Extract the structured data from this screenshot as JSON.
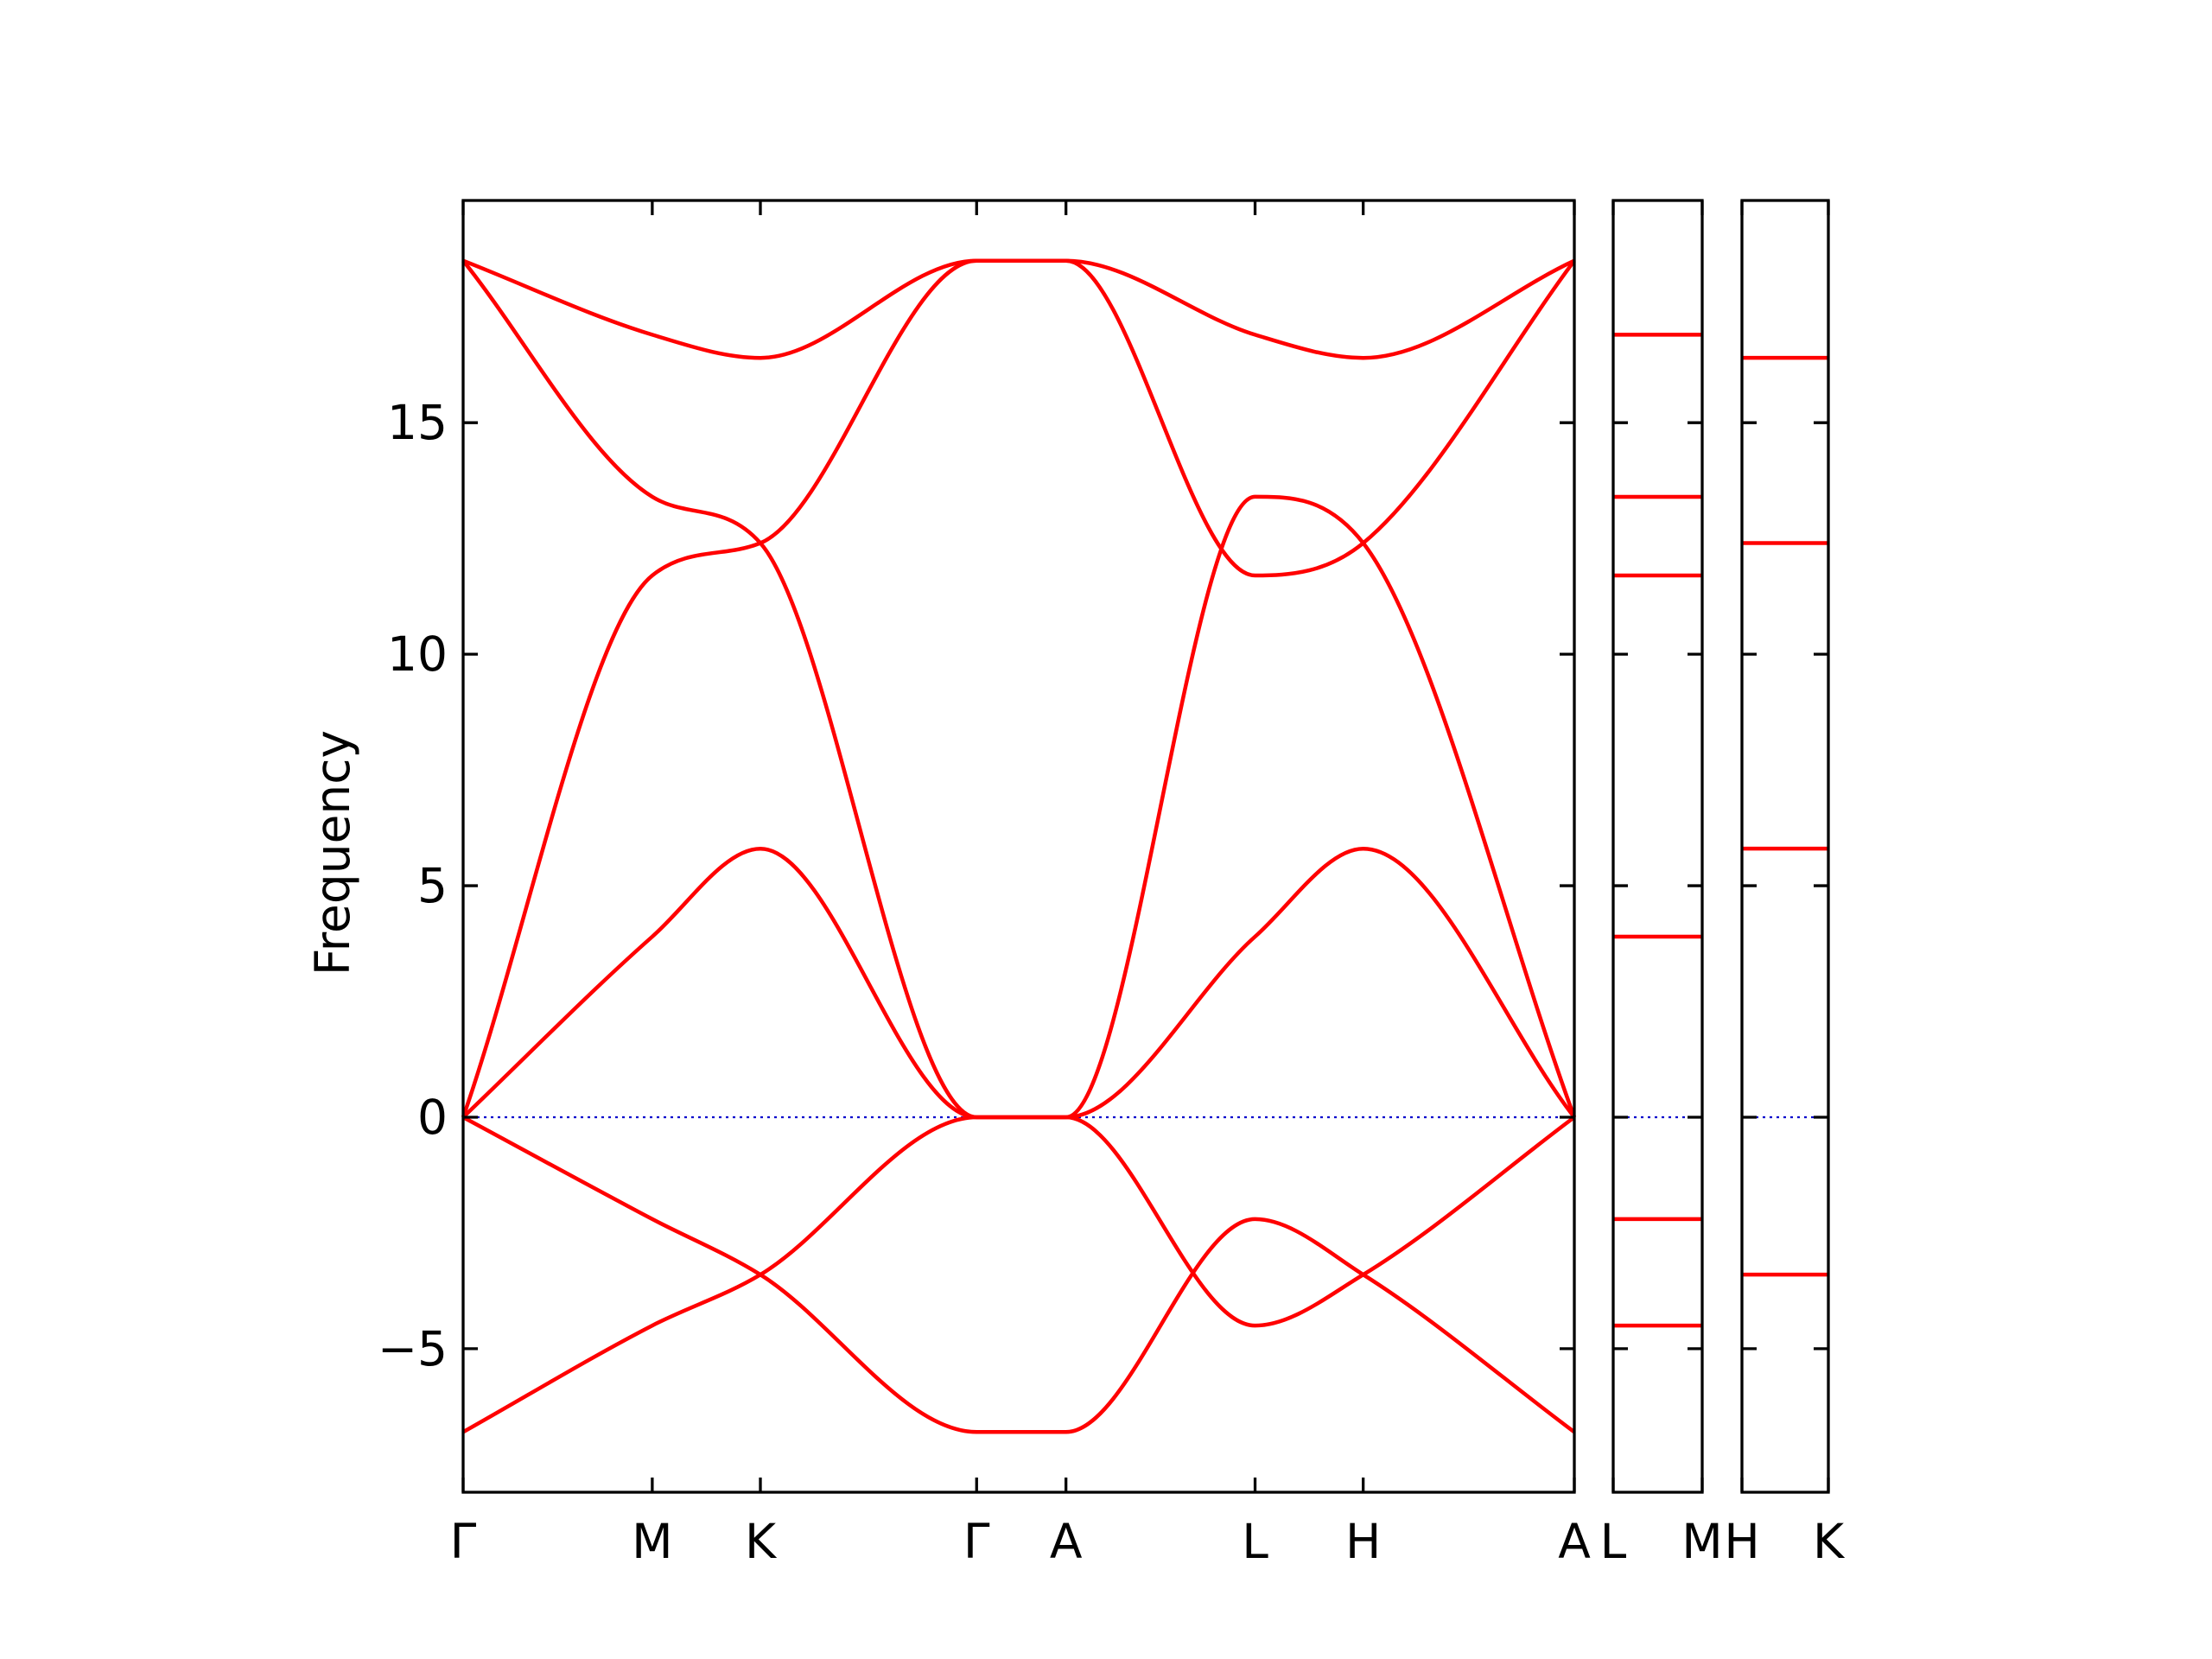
{
  "chart_data": {
    "type": "line",
    "ylabel": "Frequency",
    "ylim": [
      -8.1,
      19.8
    ],
    "yticks": [
      -5,
      0,
      5,
      10,
      15
    ],
    "ytick_labels": [
      "−5",
      "0",
      "5",
      "10",
      "15"
    ],
    "zero_line": {
      "y": 0,
      "color": "#0000cc",
      "style": "dotted"
    },
    "band_color": "#ff0000",
    "panels": [
      {
        "path": [
          "Γ",
          "M",
          "K",
          "Γ",
          "A",
          "L",
          "H",
          "A"
        ],
        "xticks": [
          0,
          0.1702,
          0.2675,
          0.4621,
          0.5425,
          0.7127,
          0.81,
          1.0
        ],
        "xtick_labels": [
          "Γ",
          "M",
          "K",
          "Γ",
          "A",
          "L",
          "H",
          "A"
        ],
        "bands": [
          {
            "x": [
              0,
              0.1702,
              0.2675,
              0.4621,
              0.5425,
              0.7127,
              0.81,
              1.0
            ],
            "y": [
              -6.8,
              -4.5,
              -3.4,
              0,
              0,
              -4.5,
              -3.4,
              0
            ]
          },
          {
            "x": [
              0,
              0.1702,
              0.2675,
              0.4621,
              0.5425,
              0.7127,
              0.81,
              1.0
            ],
            "y": [
              0,
              -2.2,
              -3.4,
              -6.8,
              -6.8,
              -2.2,
              -3.4,
              -6.8
            ]
          },
          {
            "x": [
              0,
              0.1702,
              0.2675,
              0.4621,
              0.5425,
              0.7127,
              0.81,
              1.0
            ],
            "y": [
              0,
              3.9,
              5.8,
              0,
              0,
              3.9,
              5.8,
              0
            ]
          },
          {
            "x": [
              0,
              0.1702,
              0.2675,
              0.4621,
              0.5425,
              0.7127,
              0.81,
              1.0
            ],
            "y": [
              0,
              11.7,
              12.4,
              18.5,
              18.5,
              11.7,
              12.4,
              18.5
            ]
          },
          {
            "x": [
              0,
              0.1702,
              0.2675,
              0.4621,
              0.5425,
              0.7127,
              0.81,
              1.0
            ],
            "y": [
              18.5,
              13.4,
              12.4,
              0,
              0,
              13.4,
              12.4,
              0
            ]
          },
          {
            "x": [
              0,
              0.1702,
              0.2675,
              0.4621,
              0.5425,
              0.7127,
              0.81,
              1.0
            ],
            "y": [
              18.5,
              16.9,
              16.4,
              18.5,
              18.5,
              16.9,
              16.4,
              18.5
            ]
          }
        ]
      },
      {
        "path": [
          "L",
          "M"
        ],
        "xticks": [
          0,
          1
        ],
        "xtick_labels": [
          "L",
          "M"
        ],
        "levels": [
          16.9,
          13.4,
          11.7,
          3.9,
          -2.2,
          -4.5
        ]
      },
      {
        "path": [
          "H",
          "K"
        ],
        "xticks": [
          0,
          1
        ],
        "xtick_labels": [
          "H",
          "K"
        ],
        "levels": [
          16.4,
          12.4,
          5.8,
          -3.4
        ]
      }
    ]
  }
}
